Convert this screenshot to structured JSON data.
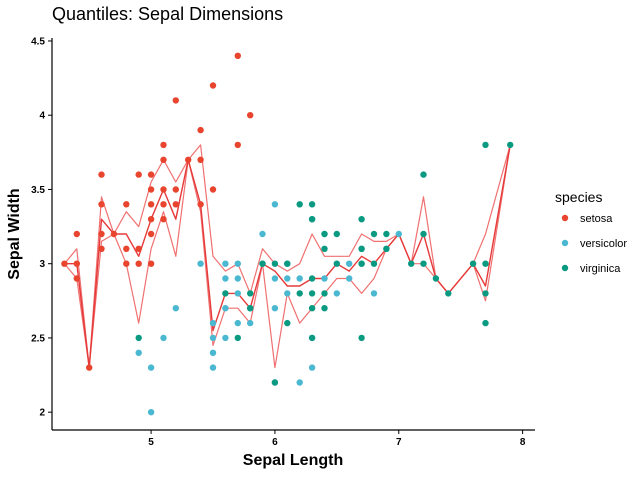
{
  "chart_data": {
    "type": "scatter",
    "title": "Quantiles: Sepal Dimensions",
    "xlabel": "Sepal Length",
    "ylabel": "Sepal Width",
    "xlim": [
      4.2,
      8.1
    ],
    "ylim": [
      1.88,
      4.52
    ],
    "x_ticks": [
      5,
      6,
      7,
      8
    ],
    "y_ticks": [
      2,
      2.5,
      3,
      3.5,
      4,
      4.5
    ],
    "x_tick_labels": [
      "5",
      "6",
      "7",
      "8"
    ],
    "y_tick_labels": [
      "2",
      "2.5",
      "3",
      "3.5",
      "4",
      "4.5"
    ],
    "grid": false,
    "legend": {
      "title": "species",
      "placement": "right",
      "entries": [
        {
          "label": "setosa",
          "color": "#e8442e"
        },
        {
          "label": "versicolor",
          "color": "#4bb8d1"
        },
        {
          "label": "virginica",
          "color": "#0a9a82"
        }
      ]
    },
    "series": [
      {
        "name": "setosa",
        "color": "#e8442e",
        "points": [
          [
            4.3,
            3.0
          ],
          [
            4.4,
            2.9
          ],
          [
            4.4,
            3.0
          ],
          [
            4.4,
            3.2
          ],
          [
            4.5,
            2.3
          ],
          [
            4.6,
            3.1
          ],
          [
            4.6,
            3.2
          ],
          [
            4.6,
            3.4
          ],
          [
            4.6,
            3.6
          ],
          [
            4.7,
            3.2
          ],
          [
            4.8,
            3.0
          ],
          [
            4.8,
            3.1
          ],
          [
            4.8,
            3.4
          ],
          [
            4.9,
            3.0
          ],
          [
            4.9,
            3.1
          ],
          [
            4.9,
            3.6
          ],
          [
            5.0,
            3.0
          ],
          [
            5.0,
            3.2
          ],
          [
            5.0,
            3.3
          ],
          [
            5.0,
            3.4
          ],
          [
            5.0,
            3.5
          ],
          [
            5.0,
            3.6
          ],
          [
            5.1,
            3.3
          ],
          [
            5.1,
            3.4
          ],
          [
            5.1,
            3.5
          ],
          [
            5.1,
            3.7
          ],
          [
            5.1,
            3.8
          ],
          [
            5.2,
            3.4
          ],
          [
            5.2,
            3.5
          ],
          [
            5.2,
            4.1
          ],
          [
            5.3,
            3.7
          ],
          [
            5.4,
            3.4
          ],
          [
            5.4,
            3.7
          ],
          [
            5.4,
            3.9
          ],
          [
            5.5,
            3.5
          ],
          [
            5.5,
            4.2
          ],
          [
            5.7,
            3.8
          ],
          [
            5.7,
            4.4
          ],
          [
            5.8,
            4.0
          ]
        ]
      },
      {
        "name": "versicolor",
        "color": "#4bb8d1",
        "points": [
          [
            4.9,
            2.4
          ],
          [
            5.0,
            2.0
          ],
          [
            5.0,
            2.3
          ],
          [
            5.1,
            2.5
          ],
          [
            5.2,
            2.7
          ],
          [
            5.4,
            3.0
          ],
          [
            5.5,
            2.3
          ],
          [
            5.5,
            2.4
          ],
          [
            5.5,
            2.5
          ],
          [
            5.5,
            2.6
          ],
          [
            5.6,
            2.5
          ],
          [
            5.6,
            2.7
          ],
          [
            5.6,
            2.9
          ],
          [
            5.6,
            3.0
          ],
          [
            5.7,
            2.6
          ],
          [
            5.7,
            2.8
          ],
          [
            5.7,
            2.9
          ],
          [
            5.7,
            3.0
          ],
          [
            5.8,
            2.6
          ],
          [
            5.8,
            2.7
          ],
          [
            5.9,
            3.0
          ],
          [
            5.9,
            3.2
          ],
          [
            6.0,
            2.2
          ],
          [
            6.0,
            2.7
          ],
          [
            6.0,
            2.9
          ],
          [
            6.0,
            3.4
          ],
          [
            6.1,
            2.8
          ],
          [
            6.1,
            2.9
          ],
          [
            6.1,
            3.0
          ],
          [
            6.2,
            2.2
          ],
          [
            6.2,
            2.9
          ],
          [
            6.3,
            2.3
          ],
          [
            6.3,
            2.5
          ],
          [
            6.3,
            3.3
          ],
          [
            6.4,
            2.9
          ],
          [
            6.4,
            3.2
          ],
          [
            6.5,
            2.8
          ],
          [
            6.6,
            2.9
          ],
          [
            6.6,
            3.0
          ],
          [
            6.7,
            3.0
          ],
          [
            6.7,
            3.1
          ],
          [
            6.8,
            2.8
          ],
          [
            6.9,
            3.1
          ],
          [
            7.0,
            3.2
          ]
        ]
      },
      {
        "name": "virginica",
        "color": "#0a9a82",
        "points": [
          [
            4.9,
            2.5
          ],
          [
            5.6,
            2.8
          ],
          [
            5.7,
            2.5
          ],
          [
            5.8,
            2.7
          ],
          [
            5.8,
            2.8
          ],
          [
            5.9,
            3.0
          ],
          [
            6.0,
            2.2
          ],
          [
            6.0,
            3.0
          ],
          [
            6.1,
            2.6
          ],
          [
            6.1,
            3.0
          ],
          [
            6.2,
            2.8
          ],
          [
            6.2,
            3.4
          ],
          [
            6.3,
            2.5
          ],
          [
            6.3,
            2.7
          ],
          [
            6.3,
            2.8
          ],
          [
            6.3,
            2.9
          ],
          [
            6.3,
            3.3
          ],
          [
            6.3,
            3.4
          ],
          [
            6.4,
            2.7
          ],
          [
            6.4,
            2.8
          ],
          [
            6.4,
            3.1
          ],
          [
            6.4,
            3.2
          ],
          [
            6.5,
            3.0
          ],
          [
            6.5,
            3.2
          ],
          [
            6.7,
            2.5
          ],
          [
            6.7,
            3.0
          ],
          [
            6.7,
            3.1
          ],
          [
            6.7,
            3.3
          ],
          [
            6.8,
            3.0
          ],
          [
            6.8,
            3.2
          ],
          [
            6.9,
            3.1
          ],
          [
            6.9,
            3.2
          ],
          [
            7.1,
            3.0
          ],
          [
            7.2,
            3.0
          ],
          [
            7.2,
            3.2
          ],
          [
            7.2,
            3.6
          ],
          [
            7.3,
            2.9
          ],
          [
            7.4,
            2.8
          ],
          [
            7.6,
            3.0
          ],
          [
            7.7,
            2.6
          ],
          [
            7.7,
            2.8
          ],
          [
            7.7,
            3.0
          ],
          [
            7.7,
            3.8
          ],
          [
            7.9,
            3.8
          ]
        ]
      }
    ],
    "quantile_lines": {
      "color": "#f07070",
      "median_color": "#e63a3a",
      "x": [
        4.3,
        4.4,
        4.5,
        4.6,
        4.7,
        4.8,
        4.9,
        5.0,
        5.1,
        5.2,
        5.3,
        5.4,
        5.5,
        5.6,
        5.7,
        5.8,
        5.9,
        6.0,
        6.1,
        6.2,
        6.3,
        6.4,
        6.5,
        6.6,
        6.7,
        6.8,
        6.9,
        7.0,
        7.1,
        7.2,
        7.3,
        7.4,
        7.6,
        7.7,
        7.9
      ],
      "lower": [
        3.0,
        2.9,
        2.3,
        3.15,
        3.2,
        3.0,
        2.6,
        3.1,
        3.35,
        3.05,
        3.7,
        3.35,
        2.45,
        2.7,
        2.7,
        2.6,
        3.0,
        2.3,
        2.8,
        2.6,
        2.7,
        2.8,
        2.9,
        2.9,
        2.8,
        2.9,
        3.1,
        3.2,
        3.0,
        3.0,
        2.9,
        2.8,
        3.0,
        2.75,
        3.8
      ],
      "median": [
        3.0,
        3.0,
        2.3,
        3.3,
        3.2,
        3.2,
        3.05,
        3.3,
        3.5,
        3.3,
        3.7,
        3.4,
        2.55,
        2.8,
        2.8,
        2.7,
        3.0,
        2.95,
        2.85,
        2.85,
        2.9,
        2.9,
        3.0,
        2.95,
        3.05,
        3.0,
        3.1,
        3.2,
        3.0,
        3.2,
        2.9,
        2.8,
        3.0,
        2.85,
        3.8
      ],
      "upper": [
        3.0,
        3.1,
        2.3,
        3.45,
        3.2,
        3.35,
        3.25,
        3.55,
        3.7,
        3.55,
        3.7,
        3.8,
        3.05,
        2.95,
        3.0,
        2.8,
        3.1,
        3.0,
        2.95,
        3.0,
        3.2,
        3.05,
        3.05,
        3.05,
        3.2,
        3.15,
        3.15,
        3.2,
        3.0,
        3.45,
        2.9,
        2.8,
        3.0,
        3.2,
        3.8
      ]
    }
  }
}
